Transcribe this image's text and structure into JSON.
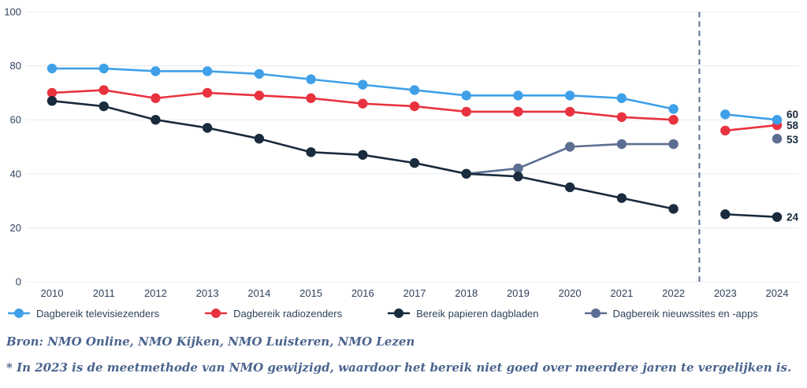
{
  "chart_data": {
    "type": "line",
    "x": [
      2010,
      2011,
      2012,
      2013,
      2014,
      2015,
      2016,
      2017,
      2018,
      2019,
      2020,
      2021,
      2022,
      2023,
      2024
    ],
    "series": [
      {
        "name": "Dagbereik televisiezenders",
        "color": "#3FA0E8",
        "values": [
          79,
          79,
          78,
          78,
          77,
          75,
          73,
          71,
          69,
          69,
          69,
          68,
          64,
          62,
          60
        ]
      },
      {
        "name": "Dagbereik radiozenders",
        "color": "#E8333F",
        "values": [
          70,
          71,
          68,
          70,
          69,
          68,
          66,
          65,
          63,
          63,
          63,
          61,
          60,
          56,
          58
        ]
      },
      {
        "name": "Bereik papieren dagbladen",
        "color": "#192B3D",
        "values": [
          67,
          65,
          60,
          57,
          53,
          48,
          47,
          44,
          40,
          39,
          35,
          31,
          27,
          25,
          24
        ]
      },
      {
        "name": "Dagbereik nieuwssites en -apps",
        "color": "#5C6E91",
        "values": [
          null,
          null,
          null,
          null,
          null,
          null,
          null,
          null,
          40,
          42,
          50,
          51,
          51,
          null,
          53
        ]
      }
    ],
    "ylim": [
      0,
      100
    ],
    "yticks": [
      0,
      20,
      40,
      60,
      80,
      100
    ],
    "grid": true,
    "legend_position": "bottom",
    "divider_after_year": 2022,
    "end_labels": [
      {
        "series": 0,
        "text": "60"
      },
      {
        "series": 1,
        "text": "58"
      },
      {
        "series": 3,
        "text": "53"
      },
      {
        "series": 2,
        "text": "24"
      }
    ]
  },
  "source_note": "Bron: NMO Online, NMO Kijken, NMO Luisteren, NMO Lezen",
  "footnote": "* In 2023 is de meetmethode van NMO gewijzigd, waardoor het bereik niet goed over meerdere jaren te vergelijken is.",
  "colors": {
    "axis_text": "#2E425C",
    "grid_line": "#E7EBEF",
    "divider_line": "#5F7390",
    "end_label_text": "#192B3D",
    "note_text": "#4A648E"
  }
}
